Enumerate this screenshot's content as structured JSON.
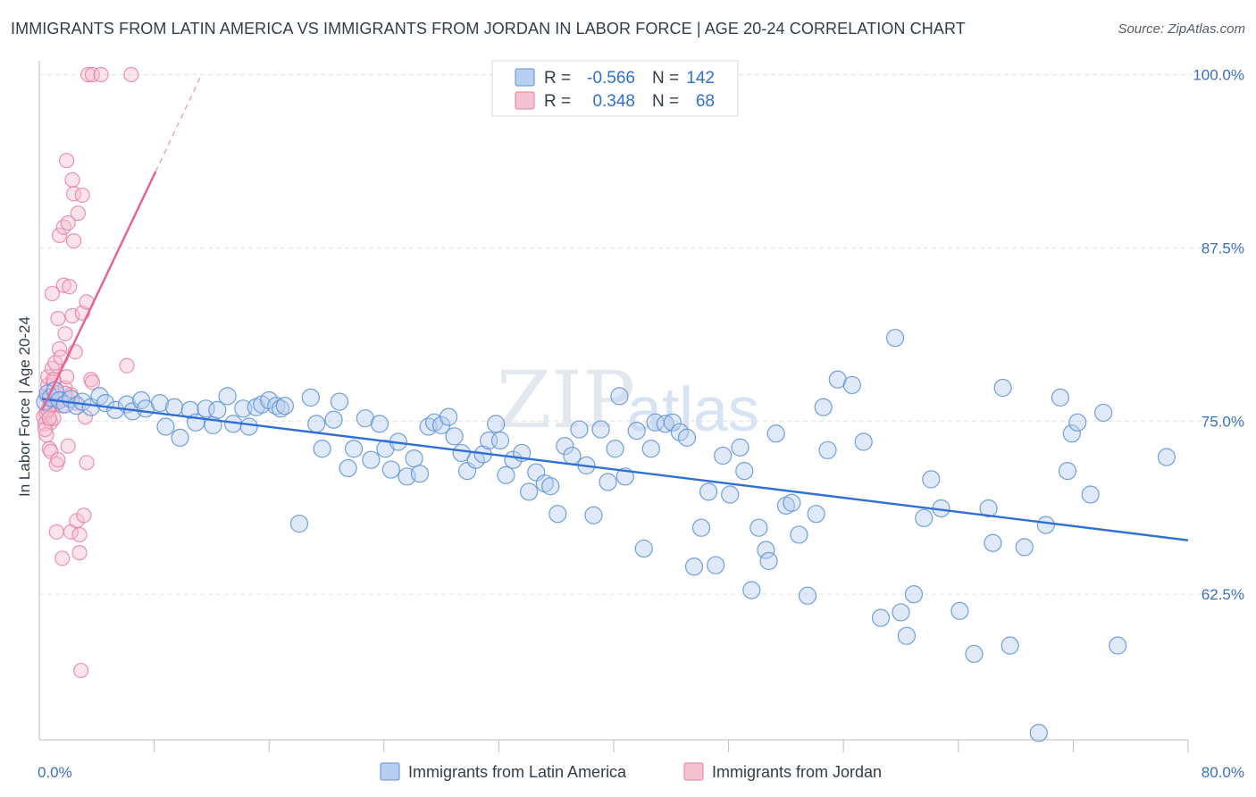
{
  "title": "IMMIGRANTS FROM LATIN AMERICA VS IMMIGRANTS FROM JORDAN IN LABOR FORCE | AGE 20-24 CORRELATION CHART",
  "source": "Source: ZipAtlas.com",
  "watermark": {
    "zip": "ZIP",
    "atlas": "atlas"
  },
  "colors": {
    "blue": "#5b8fd9",
    "blue_fill": "#b7cff0",
    "blue_line": "#2f6fd6",
    "pink": "#e8799e",
    "pink_fill": "#f5c2d2",
    "pink_line": "#e8608f",
    "grid": "#dde1e6"
  },
  "legend": {
    "rows": [
      {
        "r_label": "R =",
        "r_value": "-0.566",
        "n_label": "N =",
        "n_value": "142"
      },
      {
        "r_label": "R =",
        "r_value": "0.348",
        "n_label": "N =",
        "n_value": "68"
      }
    ]
  },
  "bottom_legend": {
    "blue": "Immigrants from Latin America",
    "pink": "Immigrants from Jordan"
  },
  "chart_data": {
    "type": "scatter",
    "title": "IMMIGRANTS FROM LATIN AMERICA VS IMMIGRANTS FROM JORDAN IN LABOR FORCE | AGE 20-24 CORRELATION CHART",
    "xlabel": "",
    "ylabel": "In Labor Force | Age 20-24",
    "xlim": [
      0,
      80
    ],
    "ylim": [
      52,
      101
    ],
    "x_tick_labels": [
      "0.0%",
      "80.0%"
    ],
    "y_ticks": [
      62.5,
      75.0,
      87.5,
      100.0
    ],
    "y_tick_labels": [
      "62.5%",
      "75.0%",
      "87.5%",
      "100.0%"
    ],
    "grid": "horizontal dashed",
    "legend_position": "top-center",
    "series": [
      {
        "name": "Immigrants from Latin America",
        "color": "#5b8fd9",
        "trend": {
          "x": [
            0.2,
            80
          ],
          "y": [
            76.6,
            66.4
          ]
        },
        "points": [
          [
            0.4,
            76.4
          ],
          [
            0.6,
            77.0
          ],
          [
            0.8,
            76.7
          ],
          [
            1.1,
            77.2
          ],
          [
            1.4,
            76.5
          ],
          [
            1.8,
            76.2
          ],
          [
            2.2,
            76.6
          ],
          [
            2.6,
            76.1
          ],
          [
            3.0,
            76.4
          ],
          [
            3.6,
            76.0
          ],
          [
            4.2,
            76.8
          ],
          [
            4.6,
            76.3
          ],
          [
            5.3,
            75.8
          ],
          [
            6.1,
            76.2
          ],
          [
            6.5,
            75.7
          ],
          [
            7.1,
            76.5
          ],
          [
            7.4,
            75.9
          ],
          [
            8.4,
            76.3
          ],
          [
            8.8,
            74.6
          ],
          [
            9.4,
            76.0
          ],
          [
            9.8,
            73.8
          ],
          [
            10.5,
            75.8
          ],
          [
            10.9,
            74.9
          ],
          [
            11.6,
            75.9
          ],
          [
            12.1,
            74.7
          ],
          [
            12.4,
            75.8
          ],
          [
            13.1,
            76.8
          ],
          [
            13.5,
            74.8
          ],
          [
            14.2,
            75.9
          ],
          [
            14.6,
            74.6
          ],
          [
            15.1,
            76.0
          ],
          [
            15.5,
            76.2
          ],
          [
            16.0,
            76.5
          ],
          [
            16.5,
            76.1
          ],
          [
            16.8,
            75.9
          ],
          [
            17.1,
            76.1
          ],
          [
            18.1,
            67.6
          ],
          [
            18.9,
            76.7
          ],
          [
            19.3,
            74.8
          ],
          [
            19.7,
            73.0
          ],
          [
            20.5,
            75.1
          ],
          [
            20.9,
            76.4
          ],
          [
            21.5,
            71.6
          ],
          [
            21.9,
            73.0
          ],
          [
            22.7,
            75.2
          ],
          [
            23.1,
            72.2
          ],
          [
            23.7,
            74.8
          ],
          [
            24.1,
            73.0
          ],
          [
            24.5,
            71.5
          ],
          [
            25.0,
            73.5
          ],
          [
            25.6,
            71.0
          ],
          [
            26.1,
            72.3
          ],
          [
            26.5,
            71.2
          ],
          [
            27.1,
            74.6
          ],
          [
            27.5,
            74.9
          ],
          [
            28.0,
            74.7
          ],
          [
            28.5,
            75.3
          ],
          [
            28.9,
            73.9
          ],
          [
            29.4,
            72.7
          ],
          [
            29.8,
            71.4
          ],
          [
            30.4,
            72.2
          ],
          [
            30.9,
            72.6
          ],
          [
            31.3,
            73.6
          ],
          [
            31.8,
            74.8
          ],
          [
            32.1,
            73.6
          ],
          [
            32.5,
            71.1
          ],
          [
            33.0,
            72.2
          ],
          [
            33.6,
            72.7
          ],
          [
            34.1,
            69.9
          ],
          [
            34.6,
            71.3
          ],
          [
            35.2,
            70.5
          ],
          [
            35.6,
            70.3
          ],
          [
            36.1,
            68.3
          ],
          [
            36.6,
            73.2
          ],
          [
            37.1,
            72.5
          ],
          [
            37.6,
            74.4
          ],
          [
            38.1,
            71.8
          ],
          [
            38.6,
            68.2
          ],
          [
            39.1,
            74.4
          ],
          [
            39.6,
            70.6
          ],
          [
            40.1,
            73.0
          ],
          [
            40.4,
            76.8
          ],
          [
            40.8,
            71.0
          ],
          [
            41.6,
            74.3
          ],
          [
            42.1,
            65.8
          ],
          [
            42.6,
            73.0
          ],
          [
            42.9,
            74.9
          ],
          [
            43.6,
            74.8
          ],
          [
            44.1,
            74.9
          ],
          [
            44.6,
            74.2
          ],
          [
            45.1,
            73.8
          ],
          [
            45.6,
            64.5
          ],
          [
            46.1,
            67.3
          ],
          [
            46.6,
            69.9
          ],
          [
            47.1,
            64.6
          ],
          [
            47.6,
            72.5
          ],
          [
            48.1,
            69.7
          ],
          [
            48.8,
            73.1
          ],
          [
            49.1,
            71.4
          ],
          [
            49.6,
            62.8
          ],
          [
            50.1,
            67.3
          ],
          [
            50.6,
            65.7
          ],
          [
            50.8,
            64.9
          ],
          [
            51.3,
            74.1
          ],
          [
            52.0,
            68.9
          ],
          [
            52.4,
            69.1
          ],
          [
            52.9,
            66.8
          ],
          [
            53.5,
            62.4
          ],
          [
            54.1,
            68.3
          ],
          [
            54.6,
            76.0
          ],
          [
            54.9,
            72.9
          ],
          [
            55.6,
            78.0
          ],
          [
            56.6,
            77.6
          ],
          [
            57.4,
            73.5
          ],
          [
            58.6,
            60.8
          ],
          [
            59.6,
            81.0
          ],
          [
            60.0,
            61.2
          ],
          [
            60.4,
            59.5
          ],
          [
            60.9,
            62.5
          ],
          [
            61.6,
            68.0
          ],
          [
            62.1,
            70.8
          ],
          [
            62.8,
            68.7
          ],
          [
            64.1,
            61.3
          ],
          [
            65.1,
            58.2
          ],
          [
            66.1,
            68.7
          ],
          [
            66.4,
            66.2
          ],
          [
            67.1,
            77.4
          ],
          [
            67.6,
            58.8
          ],
          [
            68.6,
            65.9
          ],
          [
            69.6,
            52.5
          ],
          [
            70.1,
            67.5
          ],
          [
            71.1,
            76.7
          ],
          [
            71.6,
            71.4
          ],
          [
            71.9,
            74.1
          ],
          [
            72.3,
            74.9
          ],
          [
            73.2,
            69.7
          ],
          [
            74.1,
            75.6
          ],
          [
            75.1,
            58.8
          ],
          [
            78.5,
            72.4
          ]
        ]
      },
      {
        "name": "Immigrants from Jordan",
        "color": "#e8799e",
        "trend_solid": {
          "x": [
            0.2,
            8.1
          ],
          "y": [
            75.8,
            93.0
          ]
        },
        "trend_dashed": {
          "x": [
            8.1,
            11.3
          ],
          "y": [
            93.0,
            100.0
          ]
        },
        "points": [
          [
            0.3,
            75.3
          ],
          [
            0.4,
            74.8
          ],
          [
            0.5,
            75.6
          ],
          [
            0.5,
            76.8
          ],
          [
            0.6,
            77.6
          ],
          [
            0.6,
            78.2
          ],
          [
            0.7,
            76.0
          ],
          [
            0.7,
            73.0
          ],
          [
            0.8,
            74.9
          ],
          [
            0.8,
            72.8
          ],
          [
            0.9,
            78.8
          ],
          [
            0.9,
            84.2
          ],
          [
            1.0,
            75.2
          ],
          [
            1.0,
            77.8
          ],
          [
            1.1,
            79.2
          ],
          [
            1.1,
            76.2
          ],
          [
            1.2,
            71.9
          ],
          [
            1.2,
            67.0
          ],
          [
            1.3,
            72.2
          ],
          [
            1.3,
            82.4
          ],
          [
            1.4,
            80.2
          ],
          [
            1.4,
            88.4
          ],
          [
            1.5,
            79.6
          ],
          [
            1.6,
            65.1
          ],
          [
            1.6,
            76.1
          ],
          [
            1.7,
            89.0
          ],
          [
            1.7,
            84.8
          ],
          [
            1.8,
            81.3
          ],
          [
            1.8,
            77.4
          ],
          [
            1.9,
            93.8
          ],
          [
            1.9,
            78.2
          ],
          [
            2.0,
            89.3
          ],
          [
            2.0,
            73.2
          ],
          [
            2.1,
            84.7
          ],
          [
            2.2,
            76.9
          ],
          [
            2.2,
            67.0
          ],
          [
            2.3,
            92.4
          ],
          [
            2.3,
            82.6
          ],
          [
            2.4,
            91.4
          ],
          [
            2.4,
            88.0
          ],
          [
            2.5,
            80.0
          ],
          [
            2.6,
            76.3
          ],
          [
            2.6,
            67.8
          ],
          [
            2.7,
            90.0
          ],
          [
            2.8,
            66.8
          ],
          [
            2.8,
            65.5
          ],
          [
            2.9,
            57.0
          ],
          [
            3.0,
            82.8
          ],
          [
            3.0,
            91.3
          ],
          [
            3.1,
            68.2
          ],
          [
            3.2,
            75.3
          ],
          [
            3.3,
            72.0
          ],
          [
            3.3,
            83.6
          ],
          [
            3.6,
            78.0
          ],
          [
            3.7,
            77.8
          ],
          [
            3.4,
            100.0
          ],
          [
            3.7,
            100.0
          ],
          [
            4.3,
            100.0
          ],
          [
            6.4,
            100.0
          ],
          [
            6.1,
            79.0
          ],
          [
            0.5,
            74.0
          ],
          [
            0.6,
            75.8
          ],
          [
            0.8,
            76.5
          ],
          [
            1.0,
            78.0
          ],
          [
            1.5,
            76.6
          ],
          [
            1.8,
            77.0
          ],
          [
            0.4,
            74.4
          ],
          [
            0.7,
            75.2
          ]
        ]
      }
    ]
  }
}
